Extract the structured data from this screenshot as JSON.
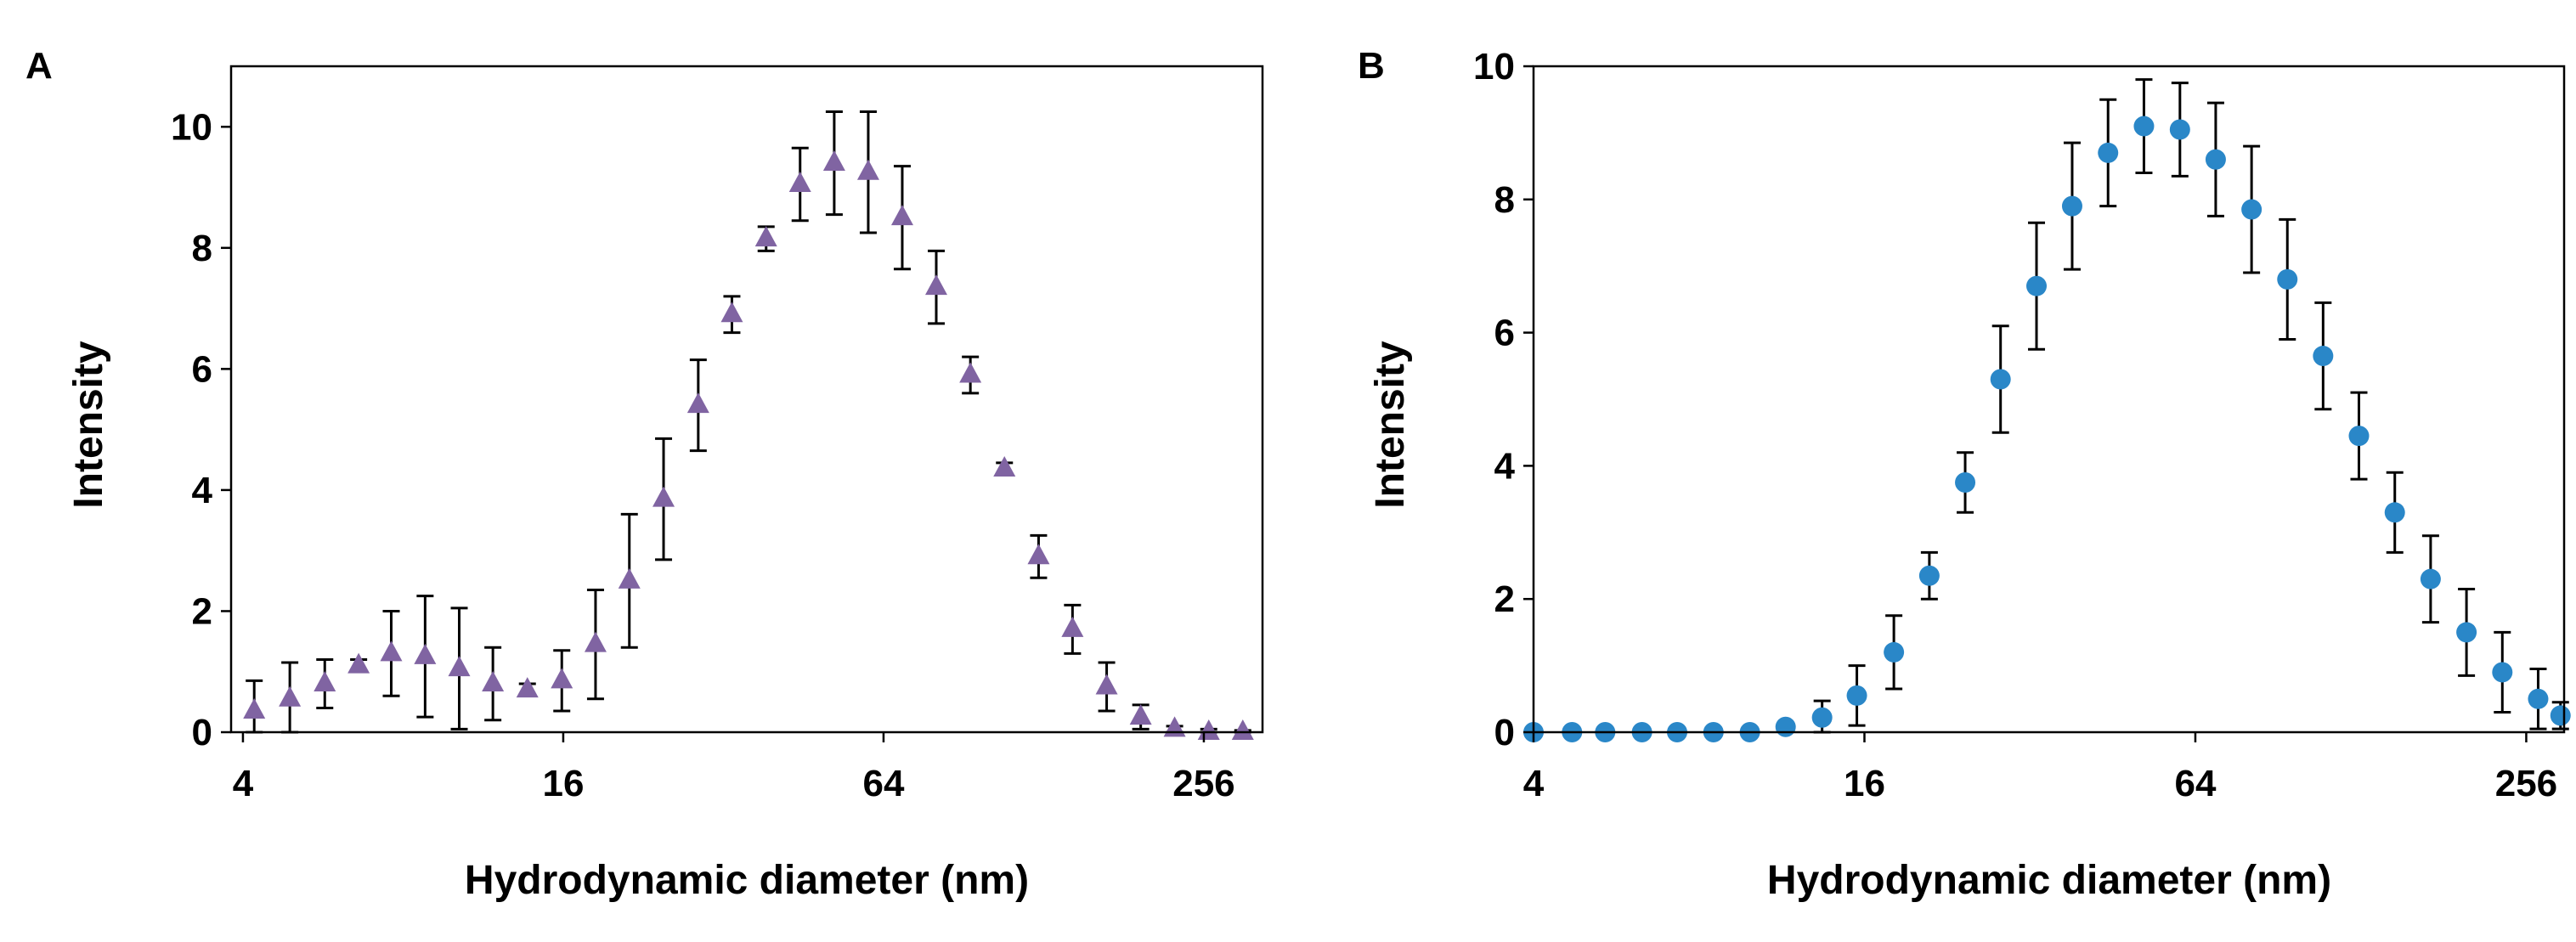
{
  "chart_data": [
    {
      "type": "scatter",
      "panel_label": "A",
      "xlabel": "Hydrodynamic diameter (nm)",
      "ylabel": "Intensity",
      "x_scale": "log2",
      "xlim": [
        3.8,
        330
      ],
      "ylim": [
        0,
        11
      ],
      "x_ticks": [
        4,
        16,
        64,
        256
      ],
      "x_tick_labels": [
        "4",
        "16",
        "64",
        "256"
      ],
      "y_ticks": [
        0,
        2,
        4,
        6,
        8,
        10
      ],
      "y_tick_labels": [
        "0",
        "2",
        "4",
        "6",
        "8",
        "10"
      ],
      "grid": false,
      "marker": "triangle",
      "color": "#8064A2",
      "series": [
        {
          "x": [
            4.2,
            4.9,
            5.7,
            6.6,
            7.6,
            8.8,
            10.2,
            11.8,
            13.7,
            15.9,
            18.4,
            21.3,
            24.7,
            28.7,
            33.2,
            38.5,
            44.6,
            51.7,
            59.9,
            69.4,
            80.4,
            93.2,
            108,
            125.2,
            145,
            168.1,
            194.8,
            225.6,
            261.5,
            303
          ],
          "y": [
            0.35,
            0.55,
            0.8,
            1.1,
            1.3,
            1.25,
            1.05,
            0.8,
            0.7,
            0.85,
            1.45,
            2.5,
            3.85,
            5.4,
            6.9,
            8.15,
            9.05,
            9.4,
            9.25,
            8.5,
            7.35,
            5.9,
            4.35,
            2.9,
            1.7,
            0.75,
            0.25,
            0.05,
            0,
            0
          ],
          "error": [
            0.5,
            0.6,
            0.4,
            0.1,
            0.7,
            1.0,
            1.0,
            0.6,
            0.1,
            0.5,
            0.9,
            1.1,
            1.0,
            0.75,
            0.3,
            0.2,
            0.6,
            0.85,
            1.0,
            0.85,
            0.6,
            0.3,
            0.1,
            0.35,
            0.4,
            0.4,
            0.2,
            0.05,
            0.05,
            0.03
          ]
        }
      ]
    },
    {
      "type": "scatter",
      "panel_label": "B",
      "xlabel": "Hydrodynamic diameter (nm)",
      "ylabel": "Intensity",
      "x_scale": "log2",
      "xlim": [
        4,
        300
      ],
      "ylim": [
        0,
        10
      ],
      "x_ticks": [
        4,
        16,
        64,
        256
      ],
      "x_tick_labels": [
        "4",
        "16",
        "64",
        "256"
      ],
      "y_ticks": [
        0,
        2,
        4,
        6,
        8,
        10
      ],
      "y_tick_labels": [
        "0",
        "2",
        "4",
        "6",
        "8",
        "10"
      ],
      "grid": false,
      "marker": "circle",
      "color": "#2A87C8",
      "series": [
        {
          "x": [
            4,
            4.7,
            5.4,
            6.3,
            7.3,
            8.5,
            9.9,
            11.5,
            13.4,
            15.5,
            18.1,
            21,
            24.4,
            28.3,
            32.9,
            38.2,
            44.4,
            51.6,
            60,
            69.7,
            81,
            94.1,
            109.3,
            127,
            147.6,
            171.5,
            199.3,
            231.6,
            269.1,
            295.5
          ],
          "y": [
            0,
            0,
            0,
            0,
            0,
            0,
            0,
            0.08,
            0.22,
            0.55,
            1.2,
            2.35,
            3.75,
            5.3,
            6.7,
            7.9,
            8.7,
            9.1,
            9.05,
            8.6,
            7.85,
            6.8,
            5.65,
            4.45,
            3.3,
            2.3,
            1.5,
            0.9,
            0.5,
            0.25
          ],
          "error": [
            0,
            0,
            0,
            0,
            0,
            0,
            0,
            0.05,
            0.25,
            0.45,
            0.55,
            0.35,
            0.45,
            0.8,
            0.95,
            0.95,
            0.8,
            0.7,
            0.7,
            0.85,
            0.95,
            0.9,
            0.8,
            0.65,
            0.6,
            0.65,
            0.65,
            0.6,
            0.45,
            0.2
          ]
        }
      ]
    }
  ]
}
